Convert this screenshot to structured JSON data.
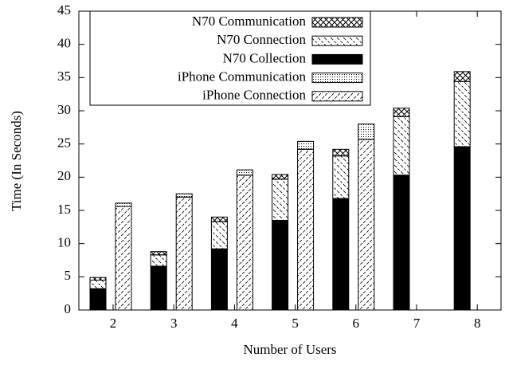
{
  "chart_data": {
    "type": "bar",
    "stacked": true,
    "xlabel": "Number of Users",
    "ylabel": "Time (In Seconds)",
    "categories": [
      "2",
      "3",
      "4",
      "5",
      "6",
      "7",
      "8"
    ],
    "series": [
      {
        "name": "N70 Communication",
        "group": "N70",
        "pattern": "crosshatch",
        "color": "#000000",
        "values": [
          0.4,
          0.5,
          0.7,
          0.7,
          1.0,
          1.3,
          1.5
        ]
      },
      {
        "name": "N70 Connection",
        "group": "N70",
        "pattern": "backslash",
        "color": "#000000",
        "values": [
          1.3,
          1.7,
          4.1,
          6.2,
          6.4,
          8.8,
          9.8
        ]
      },
      {
        "name": "N70 Collection",
        "group": "N70",
        "pattern": "solid",
        "color": "#000000",
        "values": [
          3.2,
          6.6,
          9.2,
          13.5,
          16.8,
          20.3,
          24.6
        ]
      },
      {
        "name": "iPhone Communication",
        "group": "iPhone",
        "pattern": "dots",
        "color": "#000000",
        "values": [
          0.5,
          0.5,
          0.8,
          1.2,
          2.3,
          null,
          null
        ]
      },
      {
        "name": "iPhone Connection",
        "group": "iPhone",
        "pattern": "dashslash",
        "color": "#000000",
        "values": [
          15.6,
          17.0,
          20.3,
          24.2,
          25.7,
          null,
          null
        ]
      }
    ],
    "ylim": [
      0,
      45
    ],
    "yticks": [
      0,
      5,
      10,
      15,
      20,
      25,
      30,
      35,
      40,
      45
    ],
    "legend": "top-left"
  }
}
